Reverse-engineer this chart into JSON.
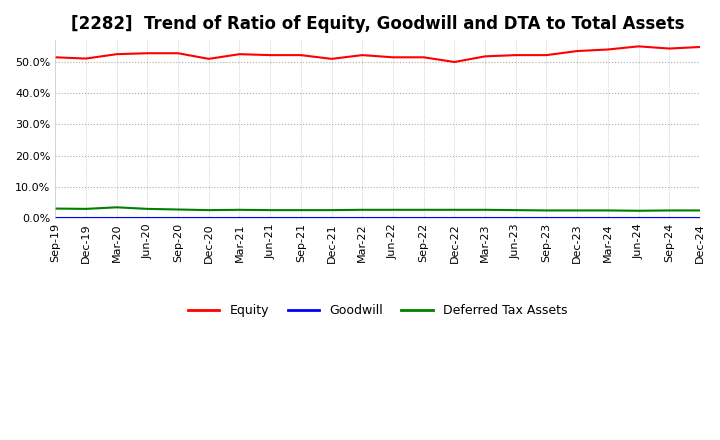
{
  "title": "[2282]  Trend of Ratio of Equity, Goodwill and DTA to Total Assets",
  "x_labels": [
    "Sep-19",
    "Dec-19",
    "Mar-20",
    "Jun-20",
    "Sep-20",
    "Dec-20",
    "Mar-21",
    "Jun-21",
    "Sep-21",
    "Dec-21",
    "Mar-22",
    "Jun-22",
    "Sep-22",
    "Dec-22",
    "Mar-23",
    "Jun-23",
    "Sep-23",
    "Dec-23",
    "Mar-24",
    "Jun-24",
    "Sep-24",
    "Dec-24"
  ],
  "equity": [
    51.5,
    51.1,
    52.5,
    52.8,
    52.8,
    51.0,
    52.5,
    52.2,
    52.2,
    51.0,
    52.2,
    51.5,
    51.5,
    50.0,
    51.8,
    52.2,
    52.2,
    53.5,
    54.0,
    55.0,
    54.3,
    54.8
  ],
  "goodwill": [
    0.0,
    0.0,
    0.0,
    0.0,
    0.0,
    0.0,
    0.0,
    0.0,
    0.0,
    0.0,
    0.0,
    0.0,
    0.0,
    0.0,
    0.0,
    0.0,
    0.0,
    0.0,
    0.0,
    0.0,
    0.0,
    0.0
  ],
  "dta": [
    3.1,
    3.0,
    3.5,
    3.0,
    2.8,
    2.6,
    2.7,
    2.6,
    2.6,
    2.6,
    2.7,
    2.7,
    2.7,
    2.7,
    2.7,
    2.6,
    2.5,
    2.5,
    2.5,
    2.4,
    2.5,
    2.5
  ],
  "equity_color": "#ff0000",
  "goodwill_color": "#0000ff",
  "dta_color": "#008000",
  "ylim": [
    0,
    57
  ],
  "yticks": [
    0,
    10,
    20,
    30,
    40,
    50
  ],
  "background_color": "#ffffff",
  "plot_bg_color": "#ffffff",
  "grid_color": "#999999",
  "title_fontsize": 12,
  "legend_labels": [
    "Equity",
    "Goodwill",
    "Deferred Tax Assets"
  ]
}
